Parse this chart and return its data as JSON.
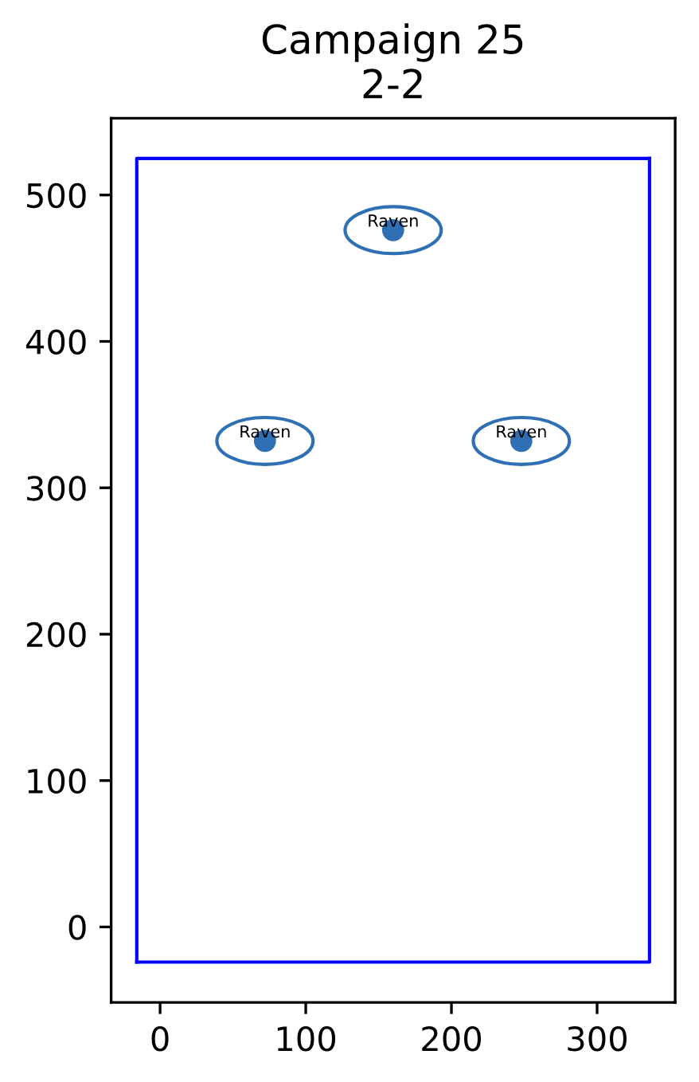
{
  "chart_data": {
    "type": "scatter",
    "title": "Campaign 25\n2-2",
    "series": [
      {
        "color": "#2f70b5",
        "marker": "circle",
        "x": [
          72,
          160,
          248
        ],
        "values": [
          332,
          476,
          332
        ]
      },
      {
        "type": "line",
        "color": "#0000ff",
        "marker": "none",
        "line_style": "solid",
        "x": [
          -16,
          -16,
          336
        ],
        "values": [
          -24,
          525,
          525
        ]
      },
      {
        "type": "line",
        "color": "#0000ff",
        "marker": "none",
        "line_style": "solid",
        "x": [
          -16,
          336,
          336
        ],
        "values": [
          -24,
          -24,
          525
        ]
      }
    ],
    "annotations": [
      {
        "text": "Raven",
        "x": 72,
        "y": 332
      },
      {
        "text": "Raven",
        "x": 160,
        "y": 476
      },
      {
        "text": "Raven",
        "x": 248,
        "y": 332
      }
    ],
    "xlim": [
      -33.6,
      353.6
    ],
    "ylim": [
      -51.5,
      552.5
    ],
    "xticks": [
      0,
      100,
      200,
      300
    ],
    "yticks": [
      0,
      100,
      200,
      300,
      400,
      500
    ]
  }
}
